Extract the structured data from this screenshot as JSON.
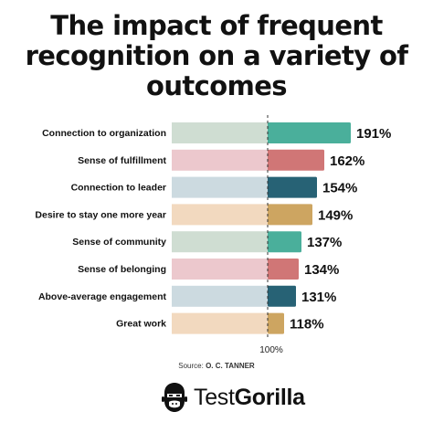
{
  "title_lines": [
    "The impact of frequent",
    "recognition on a variety of",
    "outcomes"
  ],
  "source_label": "Source:",
  "source_name": "O. C. TANNER",
  "brand": {
    "prefix": "Test",
    "suffix": "Gorilla",
    "logo_icon": "gorilla-head-icon"
  },
  "colors": {
    "teal": "#4aaf9b",
    "rose": "#d07676",
    "navy": "#276275",
    "gold": "#cda561",
    "teal_light": "#cfddd2",
    "rose_light": "#ecc8cd",
    "navy_light": "#ccdae0",
    "gold_light": "#f2d9bf"
  },
  "chart_data": {
    "type": "bar",
    "orientation": "horizontal",
    "title": "The impact of frequent recognition on a variety of outcomes",
    "baseline": 100,
    "baseline_label": "100%",
    "xlim": [
      0,
      200
    ],
    "categories": [
      "Connection to organization",
      "Sense of fulfillment",
      "Connection to leader",
      "Desire to stay one more year",
      "Sense of community",
      "Sense of belonging",
      "Above-average engagement",
      "Great work"
    ],
    "values": [
      191,
      162,
      154,
      149,
      137,
      134,
      131,
      118
    ],
    "value_labels": [
      "191%",
      "162%",
      "154%",
      "149%",
      "137%",
      "134%",
      "131%",
      "118%"
    ],
    "bar_colors": [
      "#4aaf9b",
      "#d07676",
      "#276275",
      "#cda561",
      "#4aaf9b",
      "#d07676",
      "#276275",
      "#cda561"
    ],
    "bar_colors_light": [
      "#cfddd2",
      "#ecc8cd",
      "#ccdae0",
      "#f2d9bf",
      "#cfddd2",
      "#ecc8cd",
      "#ccdae0",
      "#f2d9bf"
    ]
  }
}
